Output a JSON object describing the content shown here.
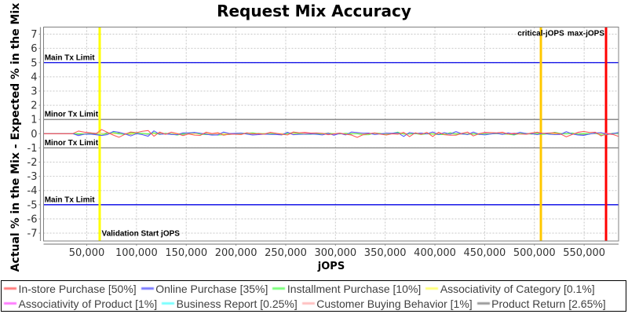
{
  "chart_data": {
    "type": "line",
    "title": "Request Mix Accuracy",
    "xlabel": "jOPS",
    "ylabel": "Actual % in the Mix - Expected % in the Mix",
    "x_axis": {
      "min": 6600,
      "max": 584600,
      "ticks": [
        50000,
        100000,
        150000,
        200000,
        250000,
        300000,
        350000,
        400000,
        450000,
        500000,
        550000
      ],
      "tick_labels": [
        "50,000",
        "100,000",
        "150,000",
        "200,000",
        "250,000",
        "300,000",
        "350,000",
        "400,000",
        "450,000",
        "500,000",
        "550,000"
      ]
    },
    "y_axis": {
      "min": -7.55,
      "max": 7.5,
      "ticks": [
        -7,
        -6,
        -5,
        -4,
        -3,
        -2,
        -1,
        0,
        1,
        2,
        3,
        4,
        5,
        6,
        7
      ],
      "tick_labels": [
        "-7",
        "-6",
        "-5",
        "-4",
        "-3",
        "-2",
        "-1",
        "0",
        "1",
        "2",
        "3",
        "4",
        "5",
        "6",
        "7"
      ]
    },
    "grid": true,
    "legend_position": "bottom",
    "markers": {
      "horizontal": [
        {
          "label": "Main Tx Limit",
          "value": 5,
          "color": "#0000E6"
        },
        {
          "label": "Minor Tx Limit",
          "value": 1,
          "color": "#808080"
        },
        {
          "label": "Minor Tx Limit",
          "value": -1,
          "color": "#808080"
        },
        {
          "label": "Main Tx Limit",
          "value": -5,
          "color": "#0000E6"
        }
      ],
      "vertical": [
        {
          "label": "Validation Start jOPS",
          "value": 63000,
          "color": "#FFFF00",
          "anchor": "right-bottom"
        },
        {
          "label": "critical-jOPS",
          "value": 506500,
          "color": "#FFC800",
          "anchor": "center-top"
        },
        {
          "label": "max-jOPS",
          "value": 572000,
          "color": "#FF0000",
          "anchor": "left-top"
        }
      ]
    },
    "x": [
      6600,
      12438,
      18277,
      24115,
      29954,
      35792,
      41630,
      47469,
      53307,
      59145,
      64984,
      70822,
      76661,
      82499,
      88337,
      94176,
      100014,
      105853,
      111691,
      117529,
      123368,
      129206,
      135044,
      140883,
      146721,
      152560,
      158398,
      164236,
      170075,
      175913,
      181752,
      187590,
      193428,
      199267,
      205105,
      210943,
      216782,
      222620,
      228459,
      234297,
      240135,
      245974,
      251812,
      257651,
      263489,
      269327,
      275166,
      281004,
      286842,
      292681,
      298519,
      304358,
      310196,
      316034,
      321873,
      327711,
      333549,
      339388,
      345226,
      351065,
      356903,
      362741,
      368580,
      374418,
      380257,
      386095,
      391933,
      397772,
      403610,
      409448,
      415287,
      421125,
      426964,
      432802,
      438640,
      444479,
      450317,
      456156,
      461994,
      467832,
      473671,
      479509,
      485347,
      491186,
      497024,
      502863,
      508701,
      514539,
      520378,
      526216,
      532055,
      537893,
      543731,
      549570,
      555408,
      561246,
      567085,
      572923,
      578762,
      584600
    ],
    "series": [
      {
        "label": "In-store Purchase [50%]",
        "color": "#FF5555",
        "values": [
          0.0,
          0.0,
          0.0,
          0.0,
          0.0,
          0.0,
          0.186,
          0.112,
          0.061,
          -0.005,
          0.29,
          0.092,
          -0.1,
          -0.25,
          -0.042,
          0.12,
          0.072,
          0.168,
          0.22,
          -0.18,
          0.116,
          -0.043,
          0.106,
          0.01,
          -0.137,
          -0.021,
          -0.102,
          -0.118,
          0.106,
          0.008,
          0.07,
          -0.109,
          -0.029,
          -0.039,
          -0.068,
          0.063,
          -0.009,
          -0.007,
          -0.03,
          0.095,
          0.032,
          -0.038,
          -0.087,
          0.119,
          0.061,
          0.088,
          0.041,
          0.05,
          0.025,
          -0.073,
          -0.013,
          0.041,
          -0.037,
          -0.095,
          -0.26,
          -0.075,
          -0.005,
          0.058,
          -0.032,
          -0.095,
          -0.009,
          -0.036,
          0.09,
          -0.21,
          0.062,
          -0.053,
          0.091,
          -0.2,
          0.097,
          -0.073,
          -0.109,
          -0.109,
          0.022,
          0.116,
          -0.159,
          0.005,
          0.091,
          0.079,
          0.056,
          0.107,
          -0.032,
          0.002,
          -0.024,
          -0.039,
          0.048,
          0.102,
          0.019,
          0.053,
          0.06,
          -0.022,
          -0.22,
          -0.057,
          0.095,
          0.16,
          0.085,
          0.104,
          -0.158,
          -0.008,
          -0.056,
          -0.193
        ]
      },
      {
        "label": "Online Purchase [35%]",
        "color": "#5555FF",
        "values": [
          0.0,
          0.0,
          0.0,
          0.0,
          0.0,
          0.0,
          -0.135,
          -0.037,
          -0.03,
          -0.07,
          -0.13,
          -0.064,
          0.16,
          0.1,
          -0.019,
          -0.16,
          0.002,
          -0.067,
          -0.18,
          0.2,
          -0.041,
          -0.017,
          -0.049,
          -0.073,
          0.056,
          0.048,
          0.082,
          0.03,
          -0.035,
          -0.097,
          -0.083,
          0.116,
          0.009,
          0.025,
          0.042,
          -0.033,
          -0.09,
          -0.066,
          -0.032,
          -0.054,
          -0.056,
          -0.083,
          0.097,
          -0.071,
          -0.044,
          -0.037,
          -0.014,
          -0.042,
          -0.087,
          0.014,
          -0.107,
          0.026,
          -0.089,
          0.116,
          0.08,
          0.031,
          0.042,
          -0.056,
          -0.012,
          0.039,
          0.032,
          0.061,
          -0.194,
          0.08,
          0.017,
          0.041,
          -0.009,
          0.12,
          -0.066,
          0.069,
          -0.027,
          0.149,
          -0.006,
          -0.068,
          0.112,
          -0.045,
          -0.088,
          -0.017,
          0.03,
          -0.049,
          0.057,
          -0.058,
          0.097,
          0.017,
          0.005,
          -0.068,
          0.033,
          -0.039,
          -0.066,
          -0.051,
          0.14,
          -0.017,
          -0.091,
          -0.12,
          -0.023,
          0.046,
          0.07,
          -0.057,
          0.007,
          0.085
        ]
      },
      {
        "label": "Installment Purchase [10%]",
        "color": "#55FF55",
        "values": [
          0.0,
          0.0,
          0.0,
          0.0,
          0.0,
          0.0,
          0.002,
          -0.031,
          0.014,
          -0.02,
          -0.103,
          0.028,
          0.096,
          -0.005,
          -0.06,
          0.075,
          0.021,
          0.027,
          -0.017,
          0.071,
          -0.062,
          0.032,
          -0.031,
          -0.098,
          -0.014,
          0.055,
          0.093,
          -0.041,
          -0.066,
          -0.068,
          -0.103,
          -0.072,
          -0.057,
          -0.01,
          0.034,
          0.02,
          0.064,
          -0.008,
          -0.001,
          -0.026,
          0.03,
          -0.088,
          0.025,
          0.084,
          -0.004,
          -0.043,
          -0.045,
          -0.013,
          -0.005,
          0.021,
          -0.004,
          -0.024,
          0.029,
          -0.001,
          -0.003,
          -0.08,
          -0.072,
          0.05,
          0.024,
          -0.073,
          0.024,
          0.109,
          -0.03,
          -0.016,
          0.005,
          -0.059,
          -0.012,
          -0.031,
          -0.064,
          -0.065,
          0.08,
          -0.037,
          0.026,
          -0.051,
          -0.009,
          -0.056,
          -0.009,
          -0.017,
          0.007,
          -0.028,
          -0.036,
          -0.093,
          0.011,
          0.032,
          -0.038,
          0.03,
          -0.051,
          -0.001,
          0.098,
          0.018,
          -0.008,
          0.05,
          -0.032,
          0.019,
          -0.015,
          0.032,
          -0.096,
          -0.066,
          0.039,
          0.021
        ]
      },
      {
        "label": "Associativity of Category [0.1%]",
        "color": "#FFFF55",
        "values": [
          0.0,
          0.0,
          0.0,
          0.0,
          0.0,
          0.0,
          0.003,
          -0.001,
          -0.012,
          -0.018,
          -0.005,
          -0.006,
          0.002,
          0.01,
          -0.008,
          -0.002,
          -0.007,
          0.005,
          -0.004,
          0.001,
          0.001,
          0.001,
          -0.003,
          0.003,
          -0.007,
          0.014,
          -0.012,
          0.002,
          0.005,
          0.006,
          0.017,
          -0.011,
          -0.003,
          0.005,
          -0.006,
          0.009,
          0.0,
          -0.002,
          0.005,
          0.002,
          0.007,
          -0.002,
          -0.0,
          -0.005,
          0.011,
          -0.005,
          -0.009,
          0.002,
          -0.001,
          0.006,
          0.001,
          0.002,
          -0.013,
          0.004,
          -0.001,
          0.008,
          0.003,
          0.01,
          -0.02,
          -0.0,
          -0.006,
          -0.007,
          -0.008,
          0.002,
          -0.007,
          0.007,
          0.008,
          0.006,
          0.002,
          0.002,
          -0.002,
          -0.006,
          0.002,
          -0.003,
          0.001,
          0.005,
          -0.011,
          0.006,
          -0.006,
          0.009,
          -0.008,
          -0.014,
          0.009,
          0.001,
          0.003,
          -0.008,
          -0.007,
          0.01,
          -0.018,
          0.001,
          -0.014,
          0.003,
          -0.004,
          -0.004,
          0.011,
          0.007,
          0.001,
          -0.016,
          0.001,
          0.017
        ]
      },
      {
        "label": "Associativity of Product [1%]",
        "color": "#FF55FF",
        "values": [
          0.0,
          0.0,
          0.0,
          0.0,
          0.0,
          0.0,
          -0.011,
          0.007,
          0.023,
          0.015,
          -0.017,
          -0.024,
          0.001,
          -0.005,
          -0.004,
          0.005,
          -0.003,
          -0.0,
          -0.012,
          0.024,
          0.0,
          -0.001,
          -0.007,
          -0.01,
          -0.004,
          -0.022,
          0.007,
          -0.001,
          -0.007,
          -0.004,
          -0.027,
          -0.005,
          0.008,
          0.002,
          -0.001,
          0.016,
          0.01,
          -0.003,
          0.017,
          -0.007,
          -0.008,
          0.011,
          0.018,
          0.005,
          -0.017,
          0.035,
          0.008,
          -0.01,
          0.025,
          0.023,
          -0.032,
          -0.009,
          0.002,
          0.013,
          0.006,
          0.001,
          0.002,
          -0.012,
          -0.009,
          -0.01,
          0.008,
          0.007,
          -0.002,
          0.0,
          0.001,
          0.017,
          -0.006,
          0.014,
          0.021,
          0.018,
          -0.015,
          0.004,
          -0.013,
          -0.007,
          0.006,
          0.008,
          0.035,
          0.001,
          -0.002,
          0.023,
          0.008,
          0.006,
          -0.003,
          -0.001,
          -0.019,
          -0.008,
          -0.007,
          -0.008,
          -0.016,
          -0.01,
          0.001,
          -0.009,
          0.012,
          -0.003,
          0.003,
          -0.007,
          0.012,
          0.011,
          0.004,
          -0.005
        ]
      },
      {
        "label": "Business Report [0.25%]",
        "color": "#55FFFF",
        "values": [
          0.0,
          0.0,
          0.0,
          0.0,
          0.0,
          0.0,
          0.0,
          -0.003,
          0.002,
          -0.005,
          0.016,
          -0.02,
          0.003,
          -0.021,
          -0.013,
          0.008,
          -0.006,
          -0.001,
          0.004,
          -0.005,
          -0.005,
          0.009,
          0.002,
          0.005,
          -0.017,
          0.008,
          0.012,
          0.01,
          0.004,
          0.013,
          0.007,
          0.009,
          -0.003,
          0.019,
          0.008,
          -0.004,
          -0.013,
          0.005,
          0.009,
          0.007,
          -0.005,
          -0.001,
          -0.01,
          -0.002,
          -0.016,
          -0.007,
          -0.001,
          -0.015,
          -0.012,
          -0.008,
          0.001,
          -0.009,
          0.02,
          -0.001,
          -0.001,
          0.005,
          -0.018,
          -0.017,
          -0.015,
          -0.004,
          0.004,
          -0.004,
          -0.008,
          -0.004,
          -0.003,
          -0.013,
          -0.007,
          -0.005,
          -0.021,
          0.002,
          -0.014,
          0.016,
          -0.014,
          -0.001,
          -0.002,
          -0.021,
          0.005,
          0.014,
          -0.005,
          0.006,
          0.004,
          -0.013,
          0.011,
          0.008,
          0.016,
          -0.015,
          0.006,
          0.002,
          -0.012,
          -0.016,
          -0.011,
          -0.03,
          -0.013,
          0.006,
          0.014,
          -0.015,
          -0.014,
          -0.008,
          -0.018,
          -0.015
        ]
      },
      {
        "label": "Customer Buying Behavior [1%]",
        "color": "#FFAFAF",
        "values": [
          0.0,
          0.0,
          0.0,
          0.0,
          0.0,
          0.0,
          -0.0,
          -0.005,
          -0.008,
          -0.015,
          0.035,
          0.008,
          -0.003,
          -0.002,
          0.03,
          -0.004,
          -0.006,
          -0.013,
          0.008,
          -0.006,
          -0.013,
          0.01,
          -0.022,
          -0.011,
          0.0,
          0.024,
          -0.014,
          -0.019,
          0.006,
          0.005,
          0.019,
          0.006,
          0.01,
          -0.004,
          -0.003,
          -0.011,
          0.026,
          0.001,
          -0.035,
          -0.0,
          -0.046,
          0.009,
          -0.008,
          -0.032,
          -0.013,
          -0.015,
          -0.033,
          0.006,
          -0.028,
          0.05,
          -0.004,
          0.002,
          -0.0,
          -0.006,
          0.003,
          0.031,
          0.027,
          -0.003,
          0.006,
          -0.014,
          0.006,
          0.016,
          -0.013,
          -0.027,
          0.011,
          0.008,
          -0.011,
          -0.029,
          0.01,
          -0.018,
          -0.021,
          0.026,
          0.004,
          0.019,
          0.016,
          -0.022,
          0.018,
          -0.015,
          0.038,
          -0.0,
          0.038,
          0.023,
          -0.019,
          0.016,
          -0.005,
          -0.004,
          0.007,
          0.032,
          0.032,
          -0.022,
          0.001,
          -0.001,
          -0.002,
          0.023,
          -0.012,
          -0.005,
          -0.008,
          0.021,
          0.018,
          0.042
        ]
      },
      {
        "label": "Product Return [2.65%]",
        "color": "#808080",
        "values": [
          0.0,
          0.0,
          0.0,
          0.0,
          0.0,
          0.0,
          -0.049,
          -0.041,
          0.057,
          0.03,
          -0.009,
          0.063,
          -0.009,
          0.048,
          -0.008,
          -0.05,
          0.036,
          -0.002,
          -0.04,
          0.008,
          0.049,
          0.01,
          -0.051,
          -0.031,
          -0.05,
          0.027,
          0.016,
          -0.004,
          0.034,
          -0.021,
          0.004,
          0.023,
          -0.016,
          -0.006,
          -0.015,
          0.008,
          -0.016,
          0.027,
          0.011,
          0.039,
          0.025,
          -0.031,
          0.029,
          0.007,
          -0.034,
          0.009,
          0.033,
          -0.04,
          -0.018,
          0.056,
          -0.022,
          0.015,
          -0.033,
          -0.027,
          0.022,
          0.03,
          -0.02,
          0.024,
          -0.021,
          0.026,
          -0.011,
          0.012,
          0.019,
          -0.026,
          0.003,
          -0.028,
          -0.004,
          0.02,
          -0.009,
          -0.05,
          -0.009,
          -0.014,
          -0.033,
          -0.04,
          -0.025,
          0.008,
          0.018,
          -0.015,
          0.025,
          0.03,
          -0.008,
          0.04,
          0.017,
          -0.039,
          -0.002,
          0.029,
          -0.0,
          0.003,
          0.01,
          0.006,
          0.013,
          0.018,
          -0.026,
          -0.048,
          -0.024,
          0.042,
          0.037,
          0.024,
          -0.025,
          0.004
        ]
      }
    ]
  }
}
